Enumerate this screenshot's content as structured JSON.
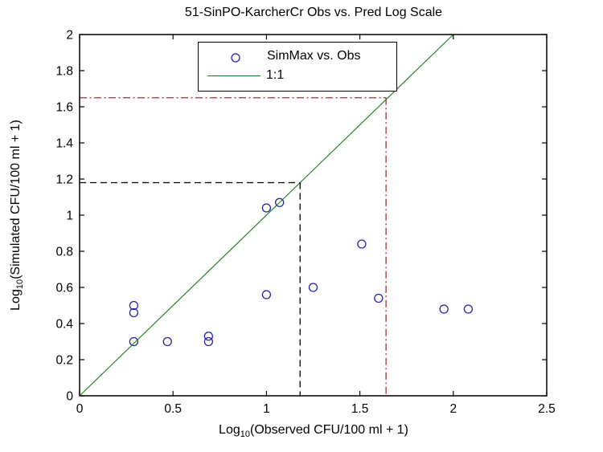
{
  "chart_data": {
    "type": "scatter",
    "title": "51-SinPO-KarcherCr Obs vs. Pred Log Scale",
    "xlabel_prefix": "Log",
    "xlabel_sub": "10",
    "xlabel_suffix": "(Observed CFU/100 ml + 1)",
    "ylabel_prefix": "Log",
    "ylabel_sub": "10",
    "ylabel_suffix": "(Simulated CFU/100 ml + 1)",
    "xlim": [
      0,
      2.5
    ],
    "ylim": [
      0,
      2
    ],
    "xtick_values": [
      0,
      0.5,
      1,
      1.5,
      2,
      2.5
    ],
    "xtick_labels": [
      "0",
      "0.5",
      "1",
      "1.5",
      "2",
      "2.5"
    ],
    "ytick_values": [
      0,
      0.2,
      0.4,
      0.6,
      0.8,
      1,
      1.2,
      1.4,
      1.6,
      1.8,
      2
    ],
    "ytick_labels": [
      "0",
      "0.2",
      "0.4",
      "0.6",
      "0.8",
      "1",
      "1.2",
      "1.4",
      "1.6",
      "1.8",
      "2"
    ],
    "grid": false,
    "legend_position": "top-center-inside",
    "series": [
      {
        "name": "SimMax vs. Obs",
        "type": "scatter",
        "marker": "circle",
        "color": "#2222AA",
        "points": [
          [
            0.29,
            0.5
          ],
          [
            0.29,
            0.46
          ],
          [
            0.29,
            0.3
          ],
          [
            0.47,
            0.3
          ],
          [
            0.69,
            0.33
          ],
          [
            0.69,
            0.3
          ],
          [
            1.0,
            1.04
          ],
          [
            1.07,
            1.07
          ],
          [
            1.0,
            0.56
          ],
          [
            1.25,
            0.6
          ],
          [
            1.51,
            0.84
          ],
          [
            1.6,
            0.54
          ],
          [
            1.95,
            0.48
          ],
          [
            2.08,
            0.48
          ]
        ]
      },
      {
        "name": "1:1",
        "type": "line",
        "color": "#1A7A1A",
        "points": [
          [
            0,
            0
          ],
          [
            2,
            2
          ]
        ]
      }
    ],
    "reference_lines": [
      {
        "name": "black-dashed-crosshair",
        "style": "dashed",
        "color": "#000000",
        "corner_x": 1.18,
        "corner_y": 1.18
      },
      {
        "name": "red-dashdot-crosshair",
        "style": "dashdot",
        "color": "#A03232",
        "corner_x": 1.64,
        "corner_y": 1.65
      }
    ]
  }
}
